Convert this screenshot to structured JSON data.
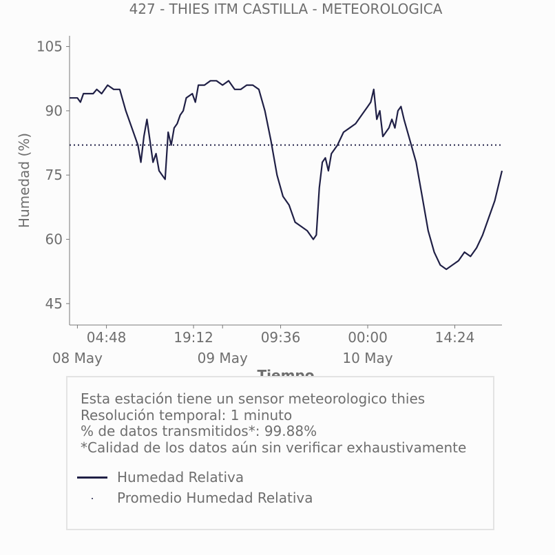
{
  "chart_data": {
    "type": "line",
    "title": "427 - THIES ITM CASTILLA - METEOROLOGICA",
    "ylabel": "Humedad (%)",
    "xlabel": "Tiempo",
    "ylim": [
      40,
      107.5
    ],
    "xlim": [
      -1.3,
      70.2
    ],
    "yticks": [
      45,
      60,
      75,
      90,
      105
    ],
    "xticks_minor": [
      "04:48",
      "19:12",
      "09:36",
      "00:00",
      "14:24"
    ],
    "xticks_minor_hours": [
      4.8,
      19.2,
      33.6,
      48.0,
      62.4
    ],
    "xticks_major": [
      "08 May",
      "09 May",
      "10 May"
    ],
    "xticks_major_hours": [
      0,
      24,
      48
    ],
    "x_units": "hours since 08 May 00:00",
    "mean": 82,
    "line_color": "#1f1f45",
    "series": [
      {
        "name": "Humedad Relativa",
        "style": "solid",
        "points": [
          [
            -1.3,
            93
          ],
          [
            0.0,
            93
          ],
          [
            0.5,
            92
          ],
          [
            1.0,
            94
          ],
          [
            2.0,
            94
          ],
          [
            2.6,
            94
          ],
          [
            3.2,
            95
          ],
          [
            4.0,
            94
          ],
          [
            5.0,
            96
          ],
          [
            6.0,
            95
          ],
          [
            7.0,
            95
          ],
          [
            8.0,
            90
          ],
          [
            9.0,
            86
          ],
          [
            10.0,
            82
          ],
          [
            10.5,
            78
          ],
          [
            11.0,
            84
          ],
          [
            11.5,
            88
          ],
          [
            12.0,
            83
          ],
          [
            12.5,
            78
          ],
          [
            13.0,
            80
          ],
          [
            13.5,
            76
          ],
          [
            14.0,
            75
          ],
          [
            14.5,
            74
          ],
          [
            15.0,
            85
          ],
          [
            15.5,
            82
          ],
          [
            16.0,
            86
          ],
          [
            16.5,
            87
          ],
          [
            17.0,
            89
          ],
          [
            17.5,
            90
          ],
          [
            18.0,
            93
          ],
          [
            19.0,
            94
          ],
          [
            19.5,
            92
          ],
          [
            20.0,
            96
          ],
          [
            21.0,
            96
          ],
          [
            22.0,
            97
          ],
          [
            23.0,
            97
          ],
          [
            24.0,
            96
          ],
          [
            25.0,
            97
          ],
          [
            26.0,
            95
          ],
          [
            27.0,
            95
          ],
          [
            28.0,
            96
          ],
          [
            29.0,
            96
          ],
          [
            30.0,
            95
          ],
          [
            31.0,
            90
          ],
          [
            32.0,
            83
          ],
          [
            33.0,
            75
          ],
          [
            34.0,
            70
          ],
          [
            35.0,
            68
          ],
          [
            36.0,
            64
          ],
          [
            37.0,
            63
          ],
          [
            38.0,
            62
          ],
          [
            39.0,
            60
          ],
          [
            39.5,
            61
          ],
          [
            40.0,
            72
          ],
          [
            40.5,
            78
          ],
          [
            41.0,
            79
          ],
          [
            41.5,
            76
          ],
          [
            42.0,
            80
          ],
          [
            43.0,
            82
          ],
          [
            44.0,
            85
          ],
          [
            45.0,
            86
          ],
          [
            46.0,
            87
          ],
          [
            47.0,
            89
          ],
          [
            48.0,
            91
          ],
          [
            48.5,
            92
          ],
          [
            49.0,
            95
          ],
          [
            49.5,
            88
          ],
          [
            50.0,
            90
          ],
          [
            50.5,
            84
          ],
          [
            51.0,
            85
          ],
          [
            51.5,
            86
          ],
          [
            52.0,
            88
          ],
          [
            52.5,
            86
          ],
          [
            53.0,
            90
          ],
          [
            53.5,
            91
          ],
          [
            54.0,
            88
          ],
          [
            55.0,
            83
          ],
          [
            56.0,
            78
          ],
          [
            57.0,
            70
          ],
          [
            58.0,
            62
          ],
          [
            59.0,
            57
          ],
          [
            60.0,
            54
          ],
          [
            61.0,
            53
          ],
          [
            62.0,
            54
          ],
          [
            63.0,
            55
          ],
          [
            64.0,
            57
          ],
          [
            65.0,
            56
          ],
          [
            66.0,
            58
          ],
          [
            67.0,
            61
          ],
          [
            68.0,
            65
          ],
          [
            69.0,
            69
          ],
          [
            70.2,
            76
          ]
        ]
      },
      {
        "name": "Promedio Humedad Relativa",
        "style": "dotted"
      }
    ]
  },
  "info": {
    "line1": "Esta estación tiene un sensor meteorologico thies",
    "line2": "Resolución temporal: 1 minuto",
    "line3": "% de datos transmitidos*: 99.88%",
    "line4": "*Calidad de los datos aún sin verificar exhaustivamente"
  },
  "legend": {
    "item1": "Humedad Relativa",
    "item2": "Promedio Humedad Relativa"
  }
}
